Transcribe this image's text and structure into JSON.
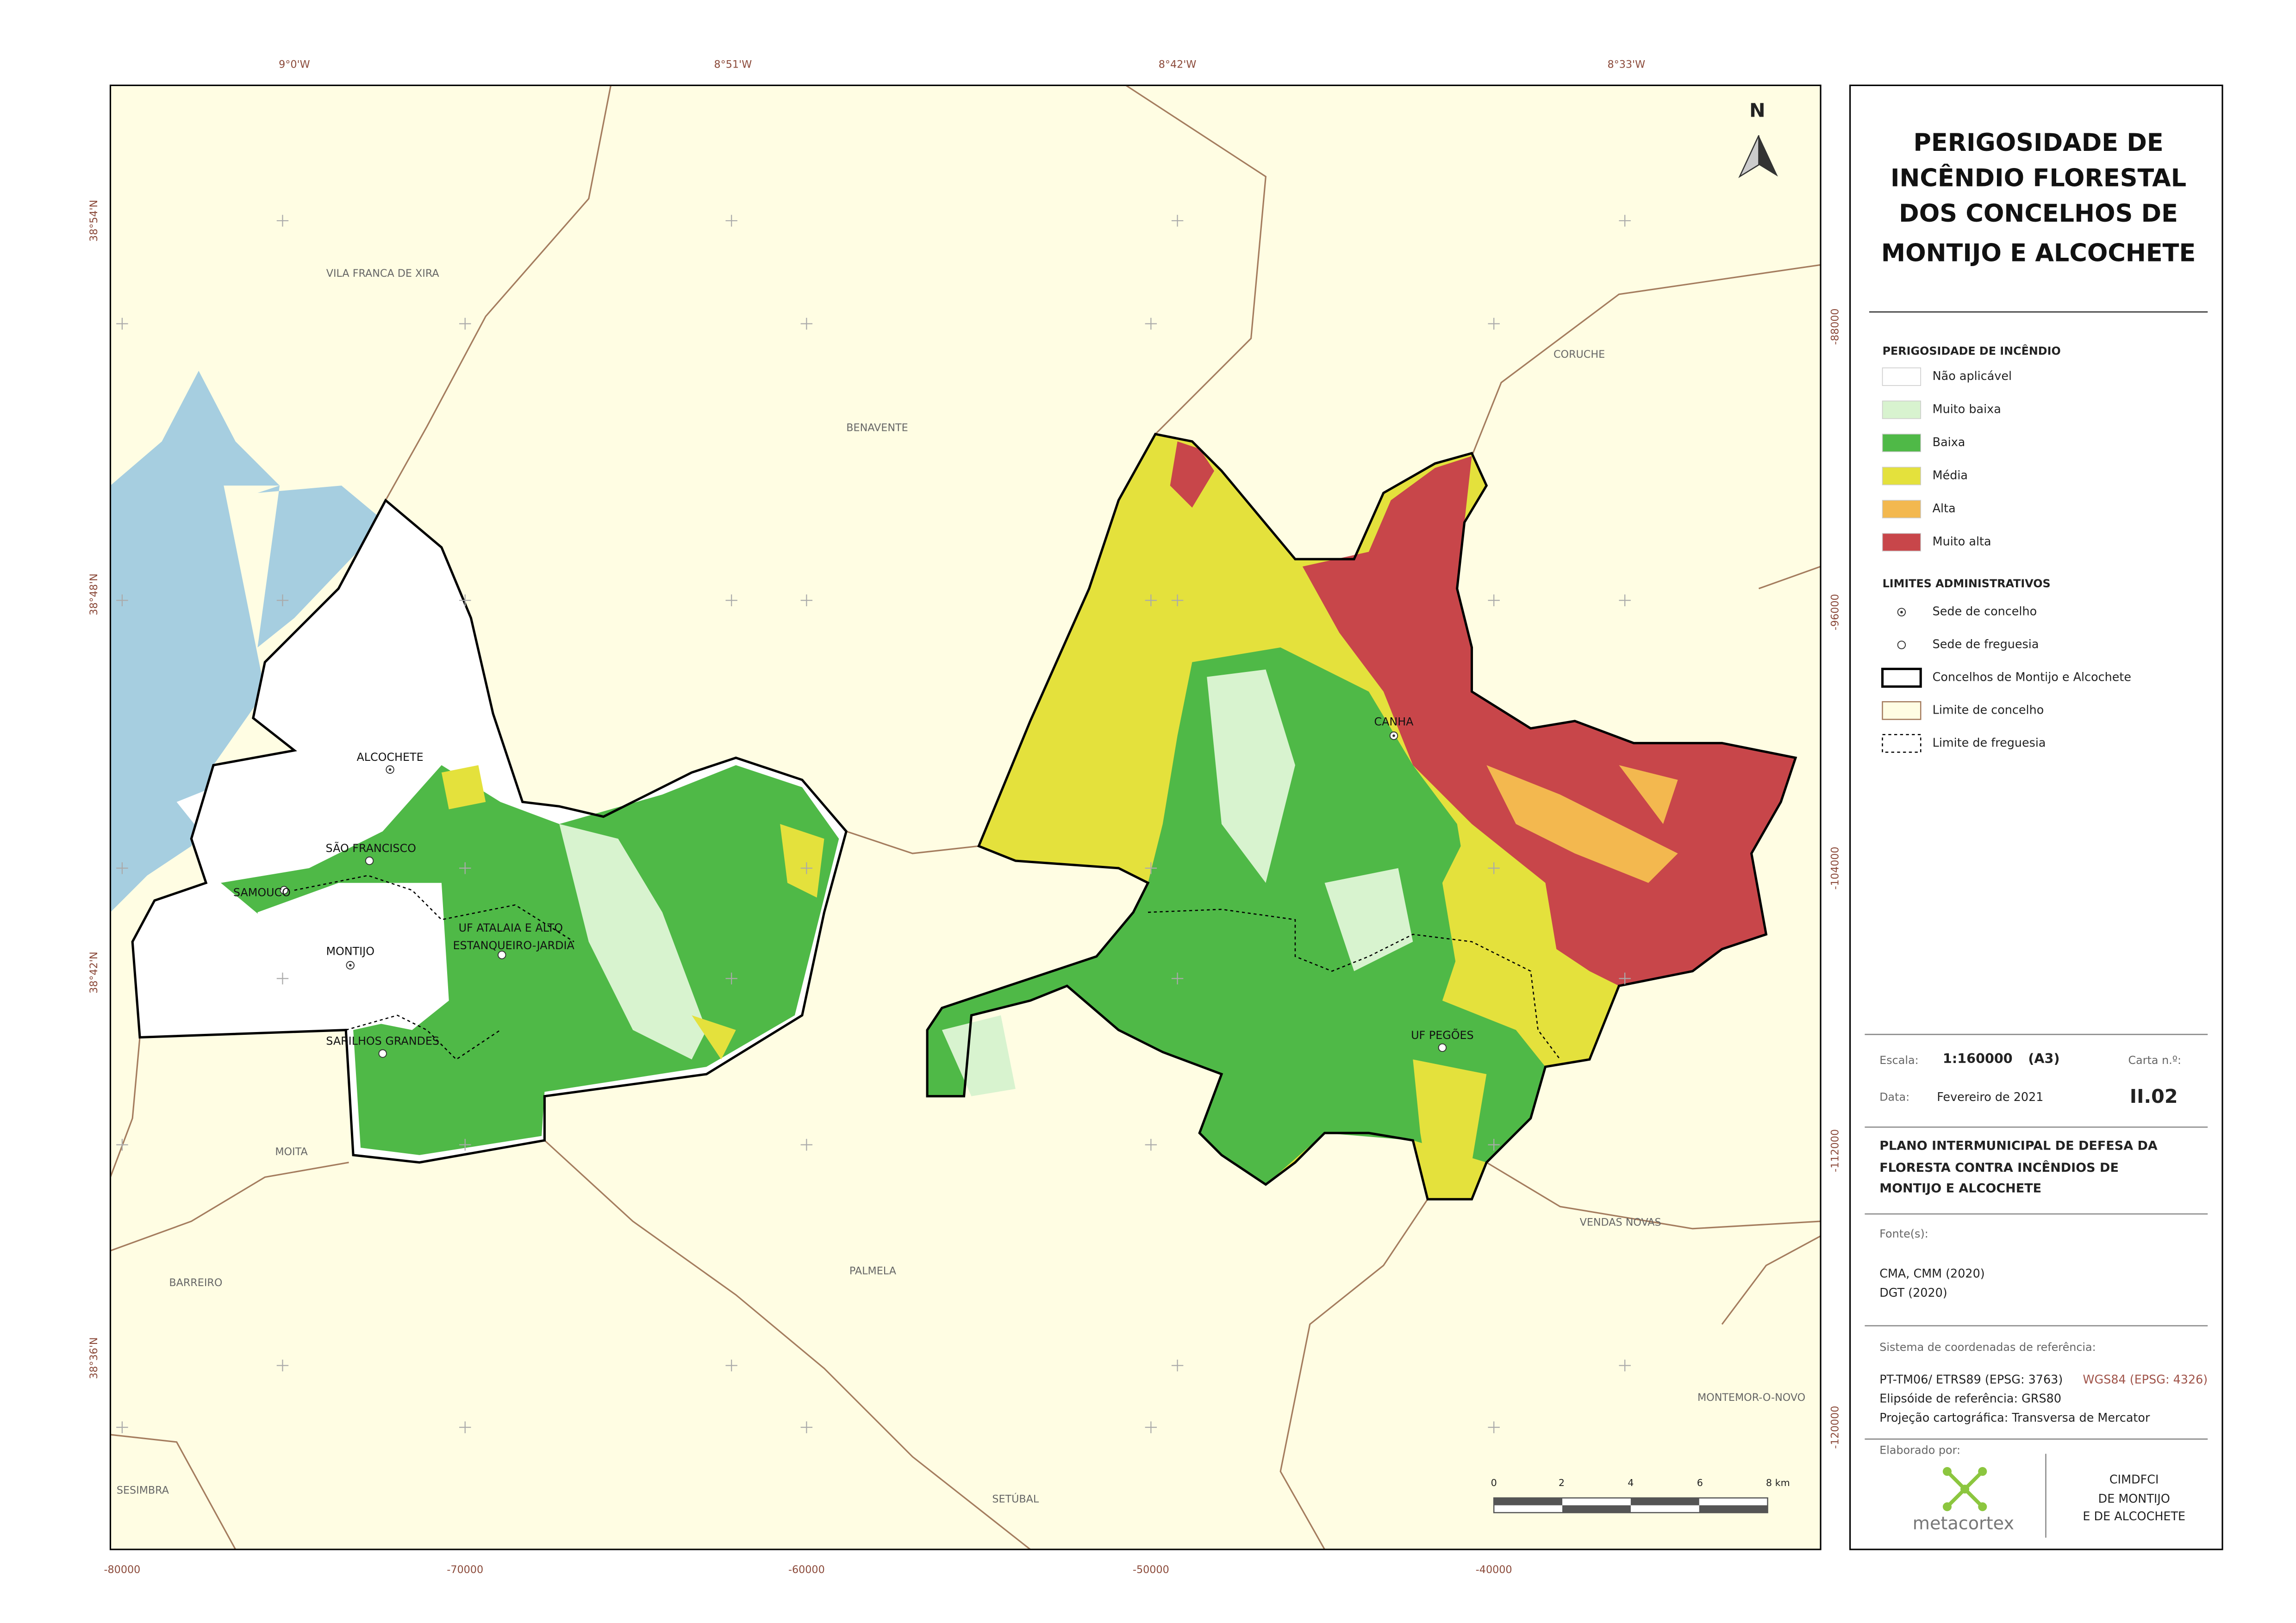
{
  "map": {
    "top_labels": [
      "9°0'W",
      "8°51'W",
      "8°42'W",
      "8°33'W"
    ],
    "left_labels": [
      "38°54'N",
      "38°48'N",
      "38°42'N",
      "38°36'N"
    ],
    "bottom_labels": [
      "-80000",
      "-70000",
      "-60000",
      "-50000",
      "-40000"
    ],
    "right_labels": [
      "-88000",
      "-96000",
      "-104000",
      "-112000",
      "-120000"
    ],
    "north": "N",
    "places": [
      "VILA FRANCA DE XIRA",
      "BENAVENTE",
      "CORUCHE",
      "ALCOCHETE",
      "SÃO FRANCISCO",
      "SAMOUCO",
      "MONTIJO",
      "UF ATALAIA E ALTO",
      "ESTANQUEIRO-JARDIA",
      "SARILHOS GRANDES",
      "CANHA",
      "UF PEGÕES",
      "MOITA",
      "BARREIRO",
      "PALMELA",
      "VENDAS NOVAS",
      "MONTEMOR-O-NOVO",
      "SESIMBRA",
      "SETÚBAL"
    ],
    "scale_bar": [
      "0",
      "2",
      "4",
      "6",
      "8 km"
    ]
  },
  "legend": {
    "title_lines": [
      "PERIGOSIDADE DE",
      "INCÊNDIO FLORESTAL",
      "DOS CONCELHOS DE",
      "MONTIJO E ALCOCHETE"
    ],
    "hazard_title": "PERIGOSIDADE DE INCÊNDIO",
    "hazard": [
      {
        "label": "Não aplicável",
        "color": "#ffffff"
      },
      {
        "label": "Muito baixa",
        "color": "#d8f3cf"
      },
      {
        "label": "Baixa",
        "color": "#4fb947"
      },
      {
        "label": "Média",
        "color": "#e4e13c"
      },
      {
        "label": "Alta",
        "color": "#f3b84f"
      },
      {
        "label": "Muito alta",
        "color": "#c8464a"
      }
    ],
    "admin_title": "LIMITES ADMINISTRATIVOS",
    "admin": [
      "Sede de concelho",
      "Sede de freguesia",
      "Concelhos de Montijo e Alcochete",
      "Limite de concelho",
      "Limite de freguesia"
    ]
  },
  "info": {
    "scale_label": "Escala:",
    "scale": "1:160000",
    "paper": "(A3)",
    "sheet_label": "Carta n.º:",
    "date_label": "Data:",
    "date": "Fevereiro de 2021",
    "sheet": "II.02",
    "plan_lines": [
      "PLANO INTERMUNICIPAL DE DEFESA DA",
      "FLORESTA CONTRA INCÊNDIOS DE",
      "MONTIJO E ALCOCHETE"
    ],
    "sources_label": "Fonte(s):",
    "sources": [
      "CMA, CMM (2020)",
      "DGT (2020)"
    ],
    "crs_label": "Sistema de coordenadas de referência:",
    "crs": "PT-TM06/ ETRS89 (EPSG: 3763)",
    "crs2": "WGS84 (EPSG: 4326)",
    "ellipsoid": "Elipsóide de referência: GRS80",
    "projection": "Projeção cartográfica: Transversa de Mercator",
    "made_by": "Elaborado por:",
    "company": "metacortex",
    "client_lines": [
      "CIMDFCI",
      "DE MONTIJO",
      "E DE ALCOCHETE"
    ]
  }
}
